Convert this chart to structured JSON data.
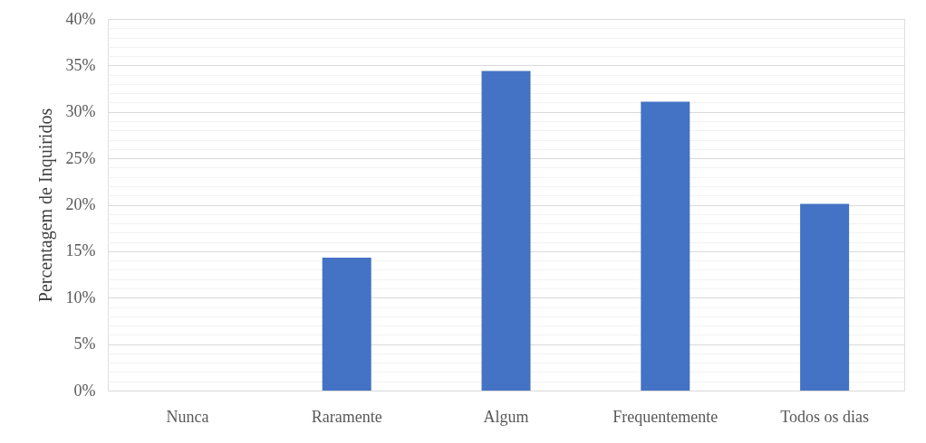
{
  "chart_data": {
    "type": "bar",
    "ylabel": "Percentagem de Inquiridos",
    "categories": [
      "Nunca",
      "Raramente",
      "Algum",
      "Frequentemente",
      "Todos os dias"
    ],
    "values": [
      0,
      14.3,
      34.4,
      31.1,
      20.1
    ],
    "color": "#4472c4",
    "ylim": [
      0,
      40
    ],
    "yticks": [
      {
        "value": 0,
        "label": "0%"
      },
      {
        "value": 1,
        "label": null
      },
      {
        "value": 2,
        "label": null
      },
      {
        "value": 3,
        "label": null
      },
      {
        "value": 4,
        "label": null
      },
      {
        "value": 5,
        "label": "5%"
      },
      {
        "value": 6,
        "label": null
      },
      {
        "value": 7,
        "label": null
      },
      {
        "value": 8,
        "label": null
      },
      {
        "value": 9,
        "label": null
      },
      {
        "value": 10,
        "label": "10%"
      },
      {
        "value": 11,
        "label": null
      },
      {
        "value": 12,
        "label": null
      },
      {
        "value": 13,
        "label": null
      },
      {
        "value": 14,
        "label": null
      },
      {
        "value": 15,
        "label": "15%"
      },
      {
        "value": 16,
        "label": null
      },
      {
        "value": 17,
        "label": null
      },
      {
        "value": 18,
        "label": null
      },
      {
        "value": 19,
        "label": null
      },
      {
        "value": 20,
        "label": "20%"
      },
      {
        "value": 21,
        "label": null
      },
      {
        "value": 22,
        "label": null
      },
      {
        "value": 23,
        "label": null
      },
      {
        "value": 24,
        "label": null
      },
      {
        "value": 25,
        "label": "25%"
      },
      {
        "value": 26,
        "label": null
      },
      {
        "value": 27,
        "label": null
      },
      {
        "value": 28,
        "label": null
      },
      {
        "value": 29,
        "label": null
      },
      {
        "value": 30,
        "label": "30%"
      },
      {
        "value": 31,
        "label": null
      },
      {
        "value": 32,
        "label": null
      },
      {
        "value": 33,
        "label": null
      },
      {
        "value": 34,
        "label": null
      },
      {
        "value": 35,
        "label": "35%"
      },
      {
        "value": 36,
        "label": null
      },
      {
        "value": 37,
        "label": null
      },
      {
        "value": 38,
        "label": null
      },
      {
        "value": 39,
        "label": null
      },
      {
        "value": 40,
        "label": "40%"
      }
    ],
    "grid": true
  }
}
